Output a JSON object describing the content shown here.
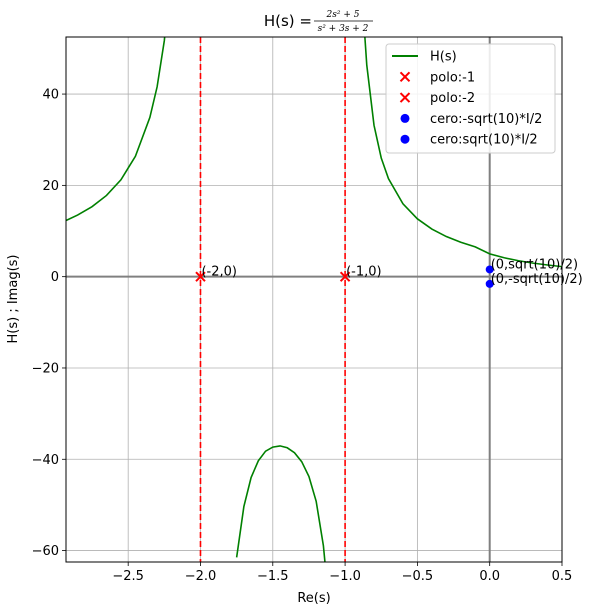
{
  "chart_data": {
    "type": "line",
    "title": {
      "prefix": "H(s) = ",
      "numerator": "2s² + 5",
      "denominator": "s² + 3s + 2"
    },
    "xlabel": "Re(s)",
    "ylabel": "H(s) ; Imag(s)",
    "xlim": [
      -2.93,
      0.5
    ],
    "ylim": [
      -62.5,
      52.5
    ],
    "xticks": [
      -2.5,
      -2.0,
      -1.5,
      -1.0,
      -0.5,
      0.0,
      0.5
    ],
    "xtick_labels": [
      "−2.5",
      "−2.0",
      "−1.5",
      "−1.0",
      "−0.5",
      "0.0",
      "0.5"
    ],
    "yticks": [
      -60,
      -40,
      -20,
      0,
      20,
      40
    ],
    "ytick_labels": [
      "−60",
      "−40",
      "−20",
      "0",
      "20",
      "40"
    ],
    "grid": true,
    "legend_position": "top-right",
    "colors": {
      "curve": "#008000",
      "pole": "#ff0000",
      "zero": "#0000ff",
      "axis_line": "#808080",
      "grid": "#b0b0b0"
    },
    "series": [
      {
        "name": "H(s)",
        "kind": "line",
        "segments": [
          {
            "x": [
              -2.93,
              -2.85,
              -2.75,
              -2.65,
              -2.55,
              -2.45,
              -2.35,
              -2.3,
              -2.25,
              -2.2,
              -2.17,
              -2.15,
              -2.13
            ],
            "y": [
              12.3,
              13.49,
              15.33,
              17.79,
              21.23,
              26.37,
              34.88,
              41.57,
              51.71,
              68.6,
              86.71,
              104.5,
              131.7
            ]
          },
          {
            "x": [
              -1.75,
              -1.7,
              -1.65,
              -1.6,
              -1.55,
              -1.5,
              -1.45,
              -1.4,
              -1.35,
              -1.3,
              -1.25,
              -1.2,
              -1.15,
              -1.12
            ],
            "y": [
              -61.48,
              -50.35,
              -43.99,
              -40.33,
              -38.23,
              -37.33,
              -37.07,
              -37.48,
              -38.57,
              -40.53,
              -43.77,
              -49.2,
              -58.94,
              -68.95
            ]
          },
          {
            "x": [
              -0.88,
              -0.85,
              -0.8,
              -0.75,
              -0.7,
              -0.6,
              -0.5,
              -0.4,
              -0.3,
              -0.2,
              -0.1,
              0.0,
              0.1,
              0.2,
              0.3,
              0.4,
              0.5
            ],
            "y": [
              60.33,
              46.34,
              33.17,
              26.0,
              21.48,
              15.96,
              12.67,
              10.43,
              8.79,
              7.53,
              6.52,
              5.0,
              4.14,
              3.49,
              2.97,
              2.56,
              2.2
            ]
          }
        ]
      },
      {
        "name": "polo:-1",
        "kind": "marker-x",
        "x": -1,
        "y": 0,
        "vline": true
      },
      {
        "name": "polo:-2",
        "kind": "marker-x",
        "x": -2,
        "y": 0,
        "vline": true
      },
      {
        "name": "cero:-sqrt(10)*I/2",
        "kind": "marker-dot",
        "x": 0,
        "y": -1.58
      },
      {
        "name": "cero:sqrt(10)*I/2",
        "kind": "marker-dot",
        "x": 0,
        "y": 1.58
      }
    ],
    "annotations": [
      {
        "text": "(-2,0)",
        "x": -2,
        "y": 0
      },
      {
        "text": "(-1,0)",
        "x": -1,
        "y": 0
      },
      {
        "text": "(0,sqrt(10)/2)",
        "x": 0,
        "y": 1.58
      },
      {
        "text": "(0,-sqrt(10)/2)",
        "x": 0,
        "y": -1.58
      }
    ]
  }
}
